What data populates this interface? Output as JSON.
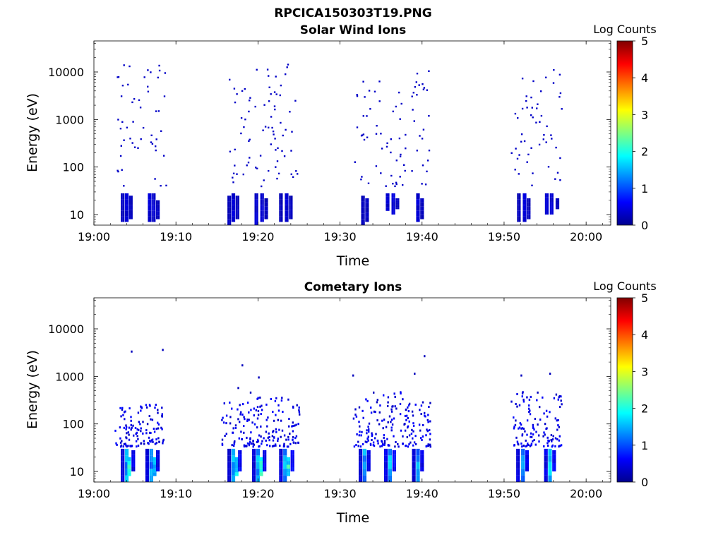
{
  "figure_title": "RPCICA150303T19.PNG",
  "chart_data": [
    {
      "type": "heatmap",
      "title": "Solar Wind Ions",
      "xlabel": "Time",
      "ylabel": "Energy (eV)",
      "x_ticks": [
        "19:00",
        "19:10",
        "19:20",
        "19:30",
        "19:40",
        "19:50",
        "20:00"
      ],
      "xlim": [
        "19:00",
        "20:03"
      ],
      "y_scale": "log",
      "y_ticks": [
        "10",
        "100",
        "1000",
        "10000"
      ],
      "ylim": [
        6,
        45000
      ],
      "colorbar": {
        "label": "Log Counts",
        "range": [
          0,
          5
        ],
        "ticks": [
          "0",
          "1",
          "2",
          "3",
          "4",
          "5"
        ],
        "colormap": "jet"
      },
      "cells": [
        [
          "19:03.5",
          7,
          28,
          0.3
        ],
        [
          "19:04",
          7,
          28,
          0.4
        ],
        [
          "19:04.5",
          8,
          25,
          0.3
        ],
        [
          "19:06.8",
          7,
          28,
          0.4
        ],
        [
          "19:07.3",
          7,
          28,
          0.4
        ],
        [
          "19:07.8",
          8,
          20,
          0.3
        ],
        [
          "19:16.5",
          6,
          25,
          0.3
        ],
        [
          "19:17",
          7,
          28,
          0.4
        ],
        [
          "19:17.5",
          8,
          25,
          0.3
        ],
        [
          "19:19.8",
          6,
          28,
          0.4
        ],
        [
          "19:20.5",
          7,
          28,
          0.4
        ],
        [
          "19:21",
          8,
          22,
          0.3
        ],
        [
          "19:22.8",
          7,
          28,
          0.3
        ],
        [
          "19:23.5",
          7,
          28,
          0.4
        ],
        [
          "19:24",
          8,
          25,
          0.3
        ],
        [
          "19:32.8",
          6,
          25,
          0.3
        ],
        [
          "19:33.3",
          7,
          22,
          0.3
        ],
        [
          "19:35.8",
          12,
          28,
          0.4
        ],
        [
          "19:36.5",
          10,
          28,
          0.4
        ],
        [
          "19:37",
          13,
          22,
          0.3
        ],
        [
          "19:39.5",
          7,
          28,
          0.4
        ],
        [
          "19:40",
          8,
          22,
          0.3
        ],
        [
          "19:51.8",
          7,
          28,
          0.3
        ],
        [
          "19:52.5",
          7,
          28,
          0.4
        ],
        [
          "19:53",
          8,
          22,
          0.3
        ],
        [
          "19:55.2",
          10,
          28,
          0.4
        ],
        [
          "19:55.8",
          10,
          28,
          0.4
        ],
        [
          "19:56.5",
          13,
          22,
          0.3
        ]
      ],
      "scatter_regions": [
        [
          "19:02.5",
          "19:05.5",
          40,
          16000
        ],
        [
          "19:05.5",
          "19:08.8",
          35,
          15000
        ],
        [
          "19:16.3",
          "19:19.5",
          40,
          7500
        ],
        [
          "19:19.5",
          "19:22",
          40,
          13000
        ],
        [
          "19:22",
          "19:25",
          45,
          22000
        ],
        [
          "19:31.5",
          "19:35",
          40,
          8000
        ],
        [
          "19:35",
          "19:38",
          40,
          5500
        ],
        [
          "19:38.5",
          "19:41",
          40,
          11000
        ],
        [
          "19:50.8",
          "19:53.5",
          40,
          8000
        ],
        [
          "19:53.5",
          "19:57",
          40,
          15000
        ]
      ]
    },
    {
      "type": "heatmap",
      "title": "Cometary Ions",
      "xlabel": "Time",
      "ylabel": "Energy (eV)",
      "x_ticks": [
        "19:00",
        "19:10",
        "19:20",
        "19:30",
        "19:40",
        "19:50",
        "20:00"
      ],
      "xlim": [
        "19:00",
        "20:03"
      ],
      "y_scale": "log",
      "y_ticks": [
        "10",
        "100",
        "1000",
        "10000"
      ],
      "ylim": [
        6,
        45000
      ],
      "colorbar": {
        "label": "Log Counts",
        "range": [
          0,
          5
        ],
        "ticks": [
          "0",
          "1",
          "2",
          "3",
          "4",
          "5"
        ],
        "colormap": "jet"
      },
      "cells": [
        [
          "19:03.5",
          6,
          30,
          0.4
        ],
        [
          "19:04",
          6,
          30,
          1.4
        ],
        [
          "19:04.3",
          8,
          20,
          1.8
        ],
        [
          "19:04.8",
          10,
          28,
          0.5
        ],
        [
          "19:06.5",
          6,
          30,
          0.4
        ],
        [
          "19:07",
          6,
          30,
          1.3
        ],
        [
          "19:07.4",
          8,
          20,
          1.7
        ],
        [
          "19:07.8",
          10,
          28,
          0.5
        ],
        [
          "19:16.5",
          6,
          30,
          0.4
        ],
        [
          "19:17",
          6,
          30,
          1.4
        ],
        [
          "19:17.4",
          8,
          20,
          1.9
        ],
        [
          "19:17.8",
          10,
          28,
          0.6
        ],
        [
          "19:19.5",
          6,
          30,
          0.4
        ],
        [
          "19:20",
          6,
          30,
          1.5
        ],
        [
          "19:20.4",
          8,
          20,
          1.9
        ],
        [
          "19:20.8",
          10,
          28,
          0.6
        ],
        [
          "19:22.8",
          6,
          30,
          0.5
        ],
        [
          "19:23.3",
          6,
          30,
          1.4
        ],
        [
          "19:23.7",
          8,
          20,
          1.9
        ],
        [
          "19:24.2",
          10,
          28,
          0.6
        ],
        [
          "19:32.5",
          6,
          30,
          0.4
        ],
        [
          "19:33",
          6,
          30,
          1.3
        ],
        [
          "19:33.5",
          10,
          28,
          0.5
        ],
        [
          "19:35.6",
          6,
          30,
          0.5
        ],
        [
          "19:36.1",
          6,
          30,
          1.4
        ],
        [
          "19:36.6",
          10,
          28,
          0.6
        ],
        [
          "19:39",
          6,
          30,
          0.4
        ],
        [
          "19:39.5",
          6,
          30,
          1.3
        ],
        [
          "19:40",
          10,
          28,
          0.5
        ],
        [
          "19:51.7",
          6,
          30,
          0.5
        ],
        [
          "19:52.3",
          6,
          30,
          1.3
        ],
        [
          "19:52.8",
          10,
          28,
          0.6
        ],
        [
          "19:55.1",
          6,
          30,
          0.5
        ],
        [
          "19:55.6",
          6,
          30,
          1.4
        ],
        [
          "19:56.1",
          10,
          28,
          0.6
        ]
      ],
      "scatter_regions": [
        [
          "19:02.5",
          "19:05.5",
          35,
          250
        ],
        [
          "19:05.5",
          "19:08.5",
          40,
          300
        ],
        [
          "19:15.5",
          "19:19",
          35,
          300
        ],
        [
          "19:19",
          "19:22",
          35,
          400
        ],
        [
          "19:22",
          "19:25",
          35,
          450
        ],
        [
          "19:31.5",
          "19:35",
          35,
          350
        ],
        [
          "19:35",
          "19:38",
          35,
          500
        ],
        [
          "19:38",
          "19:41",
          35,
          300
        ],
        [
          "19:50.8",
          "19:53.5",
          35,
          500
        ],
        [
          "19:53.5",
          "19:57",
          35,
          450
        ]
      ],
      "sparse_points": [
        [
          "19:04.5",
          3500
        ],
        [
          "19:08.3",
          3800
        ],
        [
          "19:17.5",
          600
        ],
        [
          "19:18",
          1800
        ],
        [
          "19:20",
          1000
        ],
        [
          "19:19",
          480
        ],
        [
          "19:31.5",
          1100
        ],
        [
          "19:34",
          480
        ],
        [
          "19:39",
          1200
        ],
        [
          "19:40.2",
          2800
        ],
        [
          "19:52",
          1100
        ],
        [
          "19:55.5",
          1200
        ],
        [
          "19:54",
          480
        ]
      ]
    }
  ]
}
